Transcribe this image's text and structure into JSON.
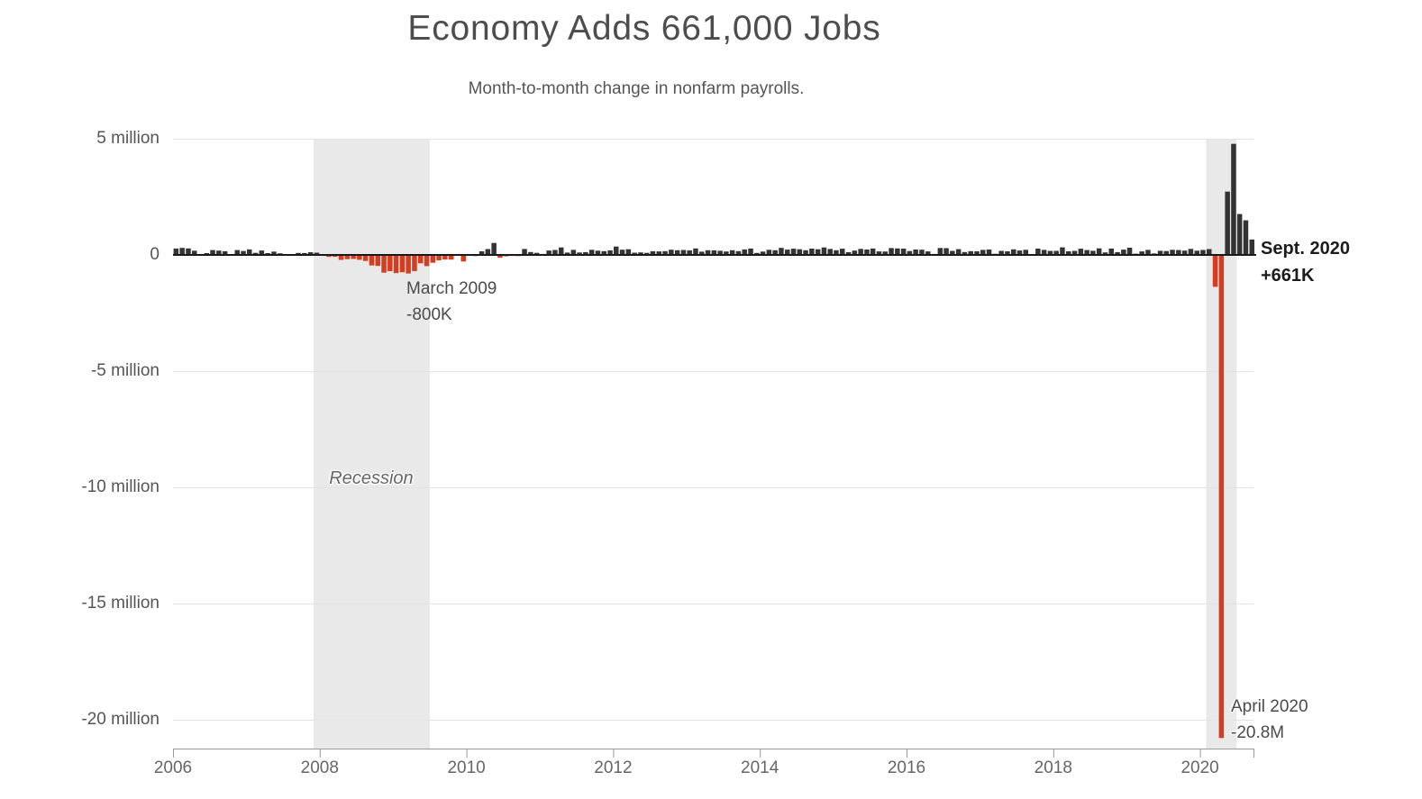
{
  "header": {
    "title": "Economy Adds 661,000 Jobs",
    "subtitle": "Month-to-month change in nonfarm payrolls."
  },
  "chart_data": {
    "type": "bar",
    "title": "Economy Adds 661,000 Jobs",
    "subtitle": "Month-to-month change in nonfarm payrolls.",
    "unit": "thousands of jobs per month",
    "x_start": "2006-01",
    "x_end": "2020-09",
    "x_freq": "monthly",
    "values_by_year_thousands": {
      "2006": [
        277,
        304,
        280,
        182,
        22,
        77,
        208,
        186,
        158,
        2,
        209,
        171
      ],
      "2007": [
        238,
        88,
        188,
        78,
        144,
        71,
        -33,
        -16,
        85,
        82,
        118,
        97
      ],
      "2008": [
        15,
        -86,
        -80,
        -214,
        -182,
        -172,
        -210,
        -259,
        -452,
        -474,
        -765,
        -697
      ],
      "2009": [
        -783,
        -743,
        -800,
        -695,
        -361,
        -482,
        -339,
        -231,
        -199,
        -202,
        -42,
        -283
      ],
      "2010": [
        18,
        -50,
        156,
        251,
        516,
        -122,
        -61,
        -42,
        -52,
        257,
        123,
        88
      ],
      "2011": [
        42,
        188,
        212,
        322,
        102,
        217,
        106,
        122,
        221,
        183,
        164,
        196
      ],
      "2012": [
        360,
        226,
        243,
        96,
        110,
        88,
        160,
        150,
        161,
        225,
        203,
        214
      ],
      "2013": [
        197,
        280,
        141,
        203,
        199,
        177,
        149,
        202,
        164,
        237,
        274,
        84
      ],
      "2014": [
        144,
        222,
        203,
        304,
        229,
        267,
        243,
        203,
        271,
        243,
        321,
        256
      ],
      "2015": [
        201,
        266,
        119,
        187,
        260,
        231,
        277,
        150,
        149,
        295,
        280,
        271
      ],
      "2016": [
        168,
        233,
        225,
        153,
        43,
        297,
        291,
        176,
        249,
        124,
        164,
        155
      ],
      "2017": [
        216,
        232,
        50,
        175,
        155,
        239,
        190,
        221,
        14,
        271,
        216,
        175
      ],
      "2018": [
        176,
        324,
        155,
        175,
        268,
        208,
        178,
        282,
        108,
        277,
        119,
        227
      ],
      "2019": [
        312,
        56,
        153,
        216,
        62,
        178,
        166,
        219,
        208,
        185,
        261,
        184
      ],
      "2020": [
        214,
        251,
        -1373,
        -20787,
        2725,
        4781,
        1761,
        1489,
        661
      ]
    },
    "y_ticks": [
      {
        "label": "5 million",
        "value": 5
      },
      {
        "label": "0",
        "value": 0
      },
      {
        "label": "-5 million",
        "value": -5
      },
      {
        "label": "-10 million",
        "value": -10
      },
      {
        "label": "-15 million",
        "value": -15
      },
      {
        "label": "-20 million",
        "value": -20
      }
    ],
    "x_ticks": [
      "2006",
      "2008",
      "2010",
      "2012",
      "2014",
      "2016",
      "2018",
      "2020"
    ],
    "ylim_millions": [
      -21.3,
      5.1
    ],
    "grid": "horizontal",
    "legend": "none",
    "recessions": [
      {
        "start": "2007-12",
        "end": "2009-06",
        "label": "Recession"
      },
      {
        "start": "2020-02",
        "end": "2020-06"
      }
    ],
    "annotations": [
      {
        "id": "march-2009",
        "line1": "March 2009",
        "line2": "-800K"
      },
      {
        "id": "sept-2020",
        "line1": "Sept. 2020",
        "line2": "+661K",
        "bold": true
      },
      {
        "id": "april-2020",
        "line1": "April 2020",
        "line2": "-20.8M"
      }
    ],
    "colors": {
      "positive_bar": "#333333",
      "negative_bar": "#d63c1f",
      "recession_band": "#e9e9e9",
      "gridline": "#e3e3e3",
      "zero_line": "#191919",
      "axis_line": "#999999",
      "axis_label": "#666666",
      "title": "#4d4d4d",
      "annotation": "#4a4a4a"
    }
  }
}
